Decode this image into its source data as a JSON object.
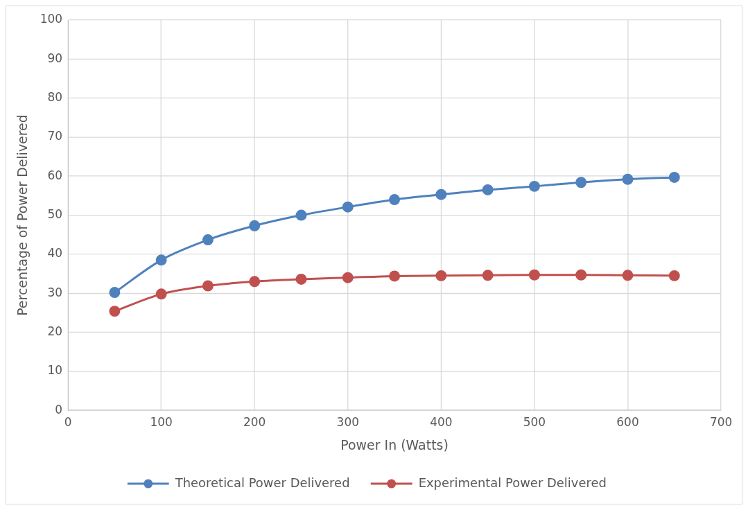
{
  "chart_data": {
    "type": "line",
    "xlabel": "Power In (Watts)",
    "ylabel": "Percentage of Power Delivered",
    "x": [
      50,
      100,
      150,
      200,
      250,
      300,
      350,
      400,
      450,
      500,
      550,
      600,
      650
    ],
    "series": [
      {
        "name": "Theoretical Power Delivered",
        "color": "#4f81bd",
        "values": [
          30.2,
          38.5,
          43.7,
          47.3,
          50.0,
          52.1,
          54.0,
          55.3,
          56.5,
          57.4,
          58.4,
          59.2,
          59.7
        ]
      },
      {
        "name": "Experimental Power Delivered",
        "color": "#c0504d",
        "values": [
          25.4,
          29.8,
          31.9,
          33.0,
          33.6,
          34.0,
          34.4,
          34.5,
          34.6,
          34.7,
          34.7,
          34.6,
          34.5
        ]
      }
    ],
    "xlim": [
      0,
      700
    ],
    "xticks": [
      0,
      100,
      200,
      300,
      400,
      500,
      600,
      700
    ],
    "ylim": [
      0,
      100
    ],
    "yticks": [
      0,
      10,
      20,
      30,
      40,
      50,
      60,
      70,
      80,
      90,
      100
    ],
    "grid": true,
    "legend": "bottom",
    "marker": "circle",
    "line_style": "solid"
  }
}
